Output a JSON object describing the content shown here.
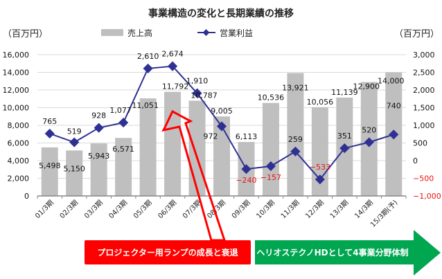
{
  "chart_data": {
    "type": "bar+line",
    "title": "事業構造の変化と長期業績の推移",
    "left_axis_unit": "（百万円）",
    "right_axis_unit": "（百万円）",
    "categories": [
      "01/3期",
      "02/3期",
      "03/3期",
      "04/3期",
      "05/3期",
      "06/3期",
      "07/3期",
      "08/3期",
      "09/3期",
      "10/3期",
      "11/3期",
      "12/3期",
      "13/3期",
      "14/3期",
      "15/3期(予)"
    ],
    "series": [
      {
        "name": "売上高",
        "type": "bar",
        "axis": "left",
        "color": "#bfbfbf",
        "values": [
          5498,
          5150,
          5943,
          6571,
          11051,
          11792,
          10787,
          9005,
          6113,
          10536,
          13921,
          10056,
          11139,
          12900,
          14000
        ],
        "labels": [
          "5,498",
          "5,150",
          "5,943",
          "6,571",
          "11,051",
          "11,792",
          "10,787",
          "9,005",
          "6,113",
          "10,536",
          "13,921",
          "10,056",
          "11,139",
          "12,900",
          "14,000"
        ]
      },
      {
        "name": "営業利益",
        "type": "line",
        "axis": "right",
        "color": "#2e3192",
        "marker": "diamond",
        "values": [
          765,
          519,
          928,
          1077,
          2610,
          2674,
          1910,
          972,
          -240,
          -157,
          259,
          -533,
          351,
          520,
          740
        ],
        "labels": [
          "765",
          "519",
          "928",
          "1,077",
          "2,610",
          "2,674",
          "1,910",
          "972",
          "−240",
          "−157",
          "259",
          "−533",
          "351",
          "520",
          "740"
        ]
      }
    ],
    "left_axis": {
      "range": [
        0,
        16000
      ],
      "ticks": [
        0,
        2000,
        4000,
        6000,
        8000,
        10000,
        12000,
        14000,
        16000
      ],
      "tick_labels": [
        "0",
        "2,000",
        "4,000",
        "6,000",
        "8,000",
        "10,000",
        "12,000",
        "14,000",
        "16,000"
      ]
    },
    "right_axis": {
      "range": [
        -1000,
        3000
      ],
      "ticks": [
        -1000,
        -500,
        0,
        500,
        1000,
        1500,
        2000,
        2500,
        3000
      ],
      "tick_labels": [
        "−1,000",
        "−500",
        "0",
        "500",
        "1,000",
        "1,500",
        "2,000",
        "2,500",
        "3,000"
      ]
    },
    "grid": true,
    "legend_position": "top-center",
    "negative_color": "#ee1111",
    "annotations": [
      {
        "text": "プロジェクター用ランプの成長と衰退",
        "shape": "box",
        "color": "#ff0000",
        "span": [
          "01/3期",
          "09/3期"
        ],
        "arrow_target": "06/3期"
      },
      {
        "text": "ヘリオステクノHDとして4事業分野体制",
        "shape": "right-arrow",
        "color": "#00a650",
        "span": [
          "10/3期",
          "15/3期(予)"
        ]
      }
    ]
  }
}
